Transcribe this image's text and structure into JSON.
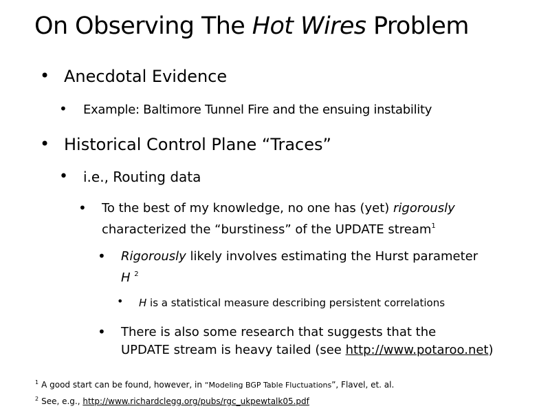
{
  "slide": {
    "title": {
      "prefix": "On Observing The ",
      "italic": "Hot Wires",
      "suffix": " Problem"
    },
    "bullets": {
      "b1": "Anecdotal Evidence",
      "b1_1": "Example: Baltimore Tunnel Fire and the ensuing instability",
      "b2": "Historical Control Plane “Traces”",
      "b2_1": "i.e., Routing data",
      "b2_1_1_line1_plain": "To the best of my knowledge,  no one has (yet) ",
      "b2_1_1_line1_italic": "rigorously",
      "b2_1_1_line2": "characterized the “burstiness” of the UPDATE stream",
      "b2_1_1_sup": "1",
      "b2_1_1_1_italic": "Rigorously",
      "b2_1_1_1_rest": " likely involves estimating the Hurst parameter",
      "b2_1_1_1_line2_italic": "H",
      "b2_1_1_1_sup": "2",
      "b2_1_1_1_1_italic": "H",
      "b2_1_1_1_1_rest": " is a statistical measure describing persistent correlations",
      "b2_1_1_2_line1": "There is also some research that suggests that the",
      "b2_1_1_2_line2_plain": "UPDATE stream is heavy tailed (see ",
      "b2_1_1_2_link": "http://www.potaroo.net",
      "b2_1_1_2_close": ")"
    },
    "footnotes": {
      "f1_num": "1",
      "f1_text_a": "A good start can be found, however,  in ",
      "f1_text_quoted": "“Modeling BGP Table Fluctuations",
      "f1_text_b": "”, Flavel, et. al.",
      "f2_num": "2",
      "f2_text": "See, e.g., ",
      "f2_link": "http://www.richardclegg.org/pubs/rgc_ukpewtalk05.pdf"
    },
    "bullet_glyph": "•"
  }
}
